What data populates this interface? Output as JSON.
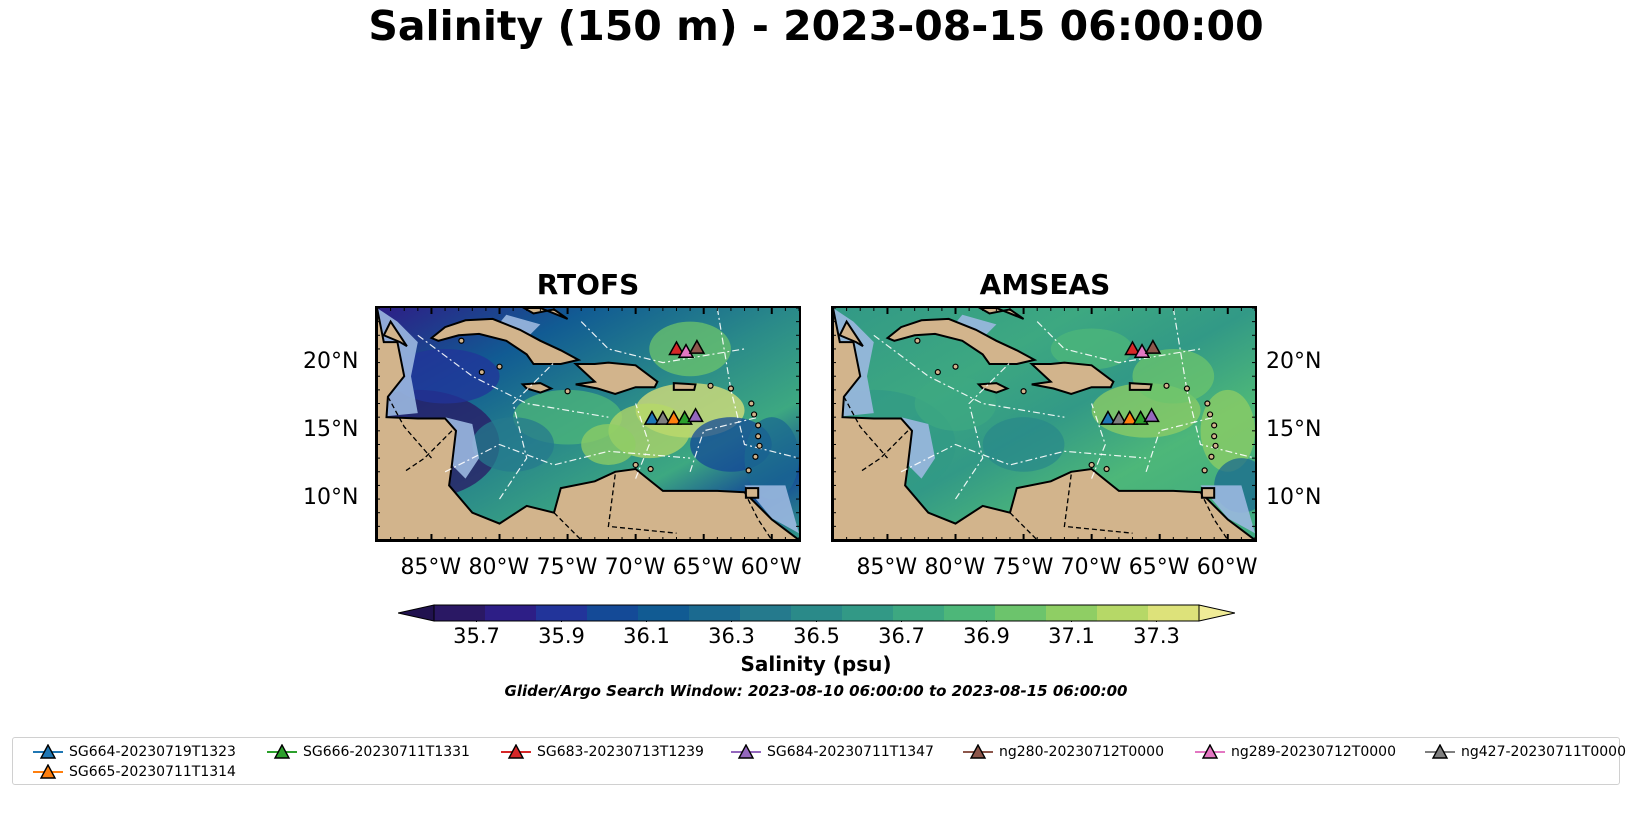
{
  "title": "Salinity (150 m) - 2023-08-15 06:00:00",
  "panels": [
    {
      "title": "RTOFS"
    },
    {
      "title": "AMSEAS"
    }
  ],
  "map_axes": {
    "lon_labels": [
      "85°W",
      "80°W",
      "75°W",
      "70°W",
      "65°W",
      "60°W"
    ],
    "lat_labels": [
      "20°N",
      "15°N",
      "10°N"
    ],
    "extent": {
      "lon_min": -89,
      "lon_max": -58,
      "lat_min": 7,
      "lat_max": 24
    }
  },
  "colorbar": {
    "label": "Salinity (psu)",
    "ticks": [
      "35.7",
      "35.9",
      "36.1",
      "36.3",
      "36.5",
      "36.7",
      "36.9",
      "37.1",
      "37.3"
    ],
    "range": [
      35.6,
      37.4
    ],
    "colormap": "haline",
    "colors": [
      "#2a1864",
      "#2d1e86",
      "#22349a",
      "#144a97",
      "#115b93",
      "#1b6a90",
      "#257a8d",
      "#2a8a89",
      "#329986",
      "#3da881",
      "#4db779",
      "#6cc46c",
      "#8fce64",
      "#b6d867",
      "#dde27a"
    ]
  },
  "search_window": "Glider/Argo Search Window: 2023-08-10 06:00:00 to 2023-08-15 06:00:00",
  "land_color": "#d2b48c",
  "shelf_color": "#9bb8e0",
  "legend": [
    {
      "label": "SG664-20230719T1323",
      "color": "#1f77b4"
    },
    {
      "label": "SG665-20230711T1314",
      "color": "#ff7f0e"
    },
    {
      "label": "SG666-20230711T1331",
      "color": "#2ca02c"
    },
    {
      "label": "SG683-20230713T1239",
      "color": "#d62728"
    },
    {
      "label": "SG684-20230711T1347",
      "color": "#9467bd"
    },
    {
      "label": "ng280-20230712T0000",
      "color": "#8c564b"
    },
    {
      "label": "ng289-20230712T0000",
      "color": "#e377c2"
    },
    {
      "label": "ng427-20230711T0000",
      "color": "#7f7f7f"
    }
  ],
  "markers": [
    {
      "name": "SG664-20230719T1323",
      "lon": -68.8,
      "lat": 15.9,
      "color": "#1f77b4"
    },
    {
      "name": "ng427-20230711T0000",
      "lon": -68.0,
      "lat": 15.9,
      "color": "#7f7f7f"
    },
    {
      "name": "SG665-20230711T1314",
      "lon": -67.2,
      "lat": 15.9,
      "color": "#ff7f0e"
    },
    {
      "name": "SG666-20230711T1331",
      "lon": -66.4,
      "lat": 15.9,
      "color": "#2ca02c"
    },
    {
      "name": "SG684-20230711T1347",
      "lon": -65.6,
      "lat": 16.1,
      "color": "#9467bd"
    },
    {
      "name": "SG683-20230713T1239",
      "lon": -67.0,
      "lat": 21.0,
      "color": "#d62728"
    },
    {
      "name": "ng289-20230712T0000",
      "lon": -66.3,
      "lat": 20.8,
      "color": "#e377c2"
    },
    {
      "name": "ng280-20230712T0000",
      "lon": -65.5,
      "lat": 21.1,
      "color": "#8c564b"
    }
  ]
}
